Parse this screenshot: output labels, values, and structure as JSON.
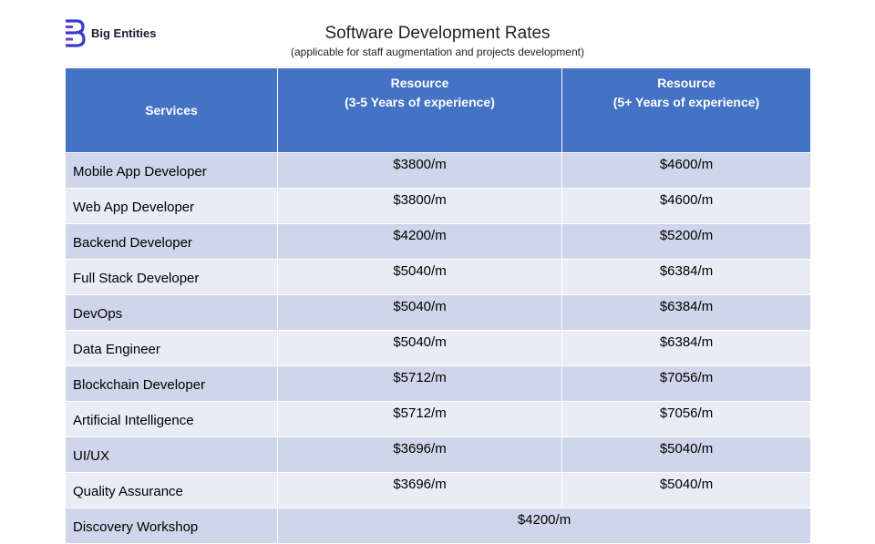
{
  "brand": {
    "name": "Big Entities",
    "icon": "b-logo-icon",
    "color": "#3a3ad0"
  },
  "title": "Software Development Rates",
  "subtitle": "(applicable for staff augmentation and projects development)",
  "table": {
    "headers": {
      "services": "Services",
      "mid_line1": "Resource",
      "mid_line2": "(3-5 Years of experience)",
      "senior_line1": "Resource",
      "senior_line2": "(5+ Years of experience)"
    },
    "rows": [
      {
        "service": "Mobile App Developer",
        "mid": "$3800/m",
        "senior": "$4600/m"
      },
      {
        "service": "Web App Developer",
        "mid": "$3800/m",
        "senior": "$4600/m"
      },
      {
        "service": "Backend Developer",
        "mid": "$4200/m",
        "senior": "$5200/m"
      },
      {
        "service": "Full Stack Developer",
        "mid": "$5040/m",
        "senior": "$6384/m"
      },
      {
        "service": "DevOps",
        "mid": "$5040/m",
        "senior": "$6384/m"
      },
      {
        "service": "Data Engineer",
        "mid": "$5040/m",
        "senior": "$6384/m"
      },
      {
        "service": "Blockchain Developer",
        "mid": "$5712/m",
        "senior": "$7056/m"
      },
      {
        "service": "Artificial Intelligence",
        "mid": "$5712/m",
        "senior": "$7056/m"
      },
      {
        "service": "UI/UX",
        "mid": "$3696/m",
        "senior": "$5040/m"
      },
      {
        "service": "Quality Assurance",
        "mid": "$3696/m",
        "senior": "$5040/m"
      }
    ],
    "workshop": {
      "service": "Discovery Workshop",
      "price": "$4200/m"
    }
  },
  "colors": {
    "header": "#4472c4",
    "row_odd": "#cfd5ea",
    "row_even": "#e9ebf5"
  }
}
